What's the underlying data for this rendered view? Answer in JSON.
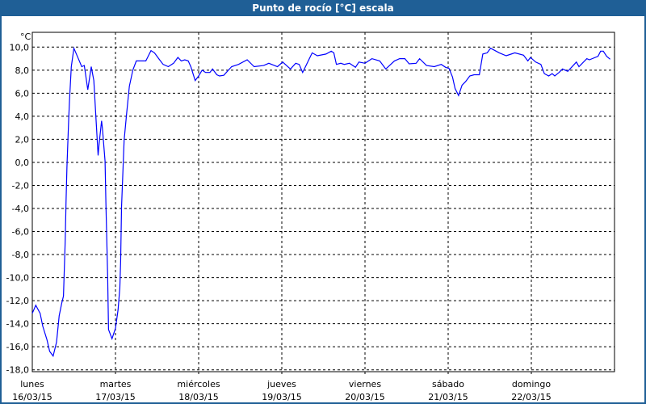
{
  "window": {
    "title": "Punto de rocío [°C] escala"
  },
  "chart_data": {
    "type": "line",
    "title": "Punto de rocío [°C] escala",
    "ylabel": "°C",
    "ylim": [
      -18,
      10
    ],
    "yticks": [
      "10,0",
      "8,0",
      "6,0",
      "4,0",
      "2,0",
      "0,0",
      "-2,0",
      "-4,0",
      "-6,0",
      "-8,0",
      "-10,0",
      "-12,0",
      "-14,0",
      "-16,0",
      "-18,0"
    ],
    "xlim": [
      "16/03/15 00:00",
      "23/03/15 00:00"
    ],
    "xticks": [
      {
        "day": "lunes",
        "date": "16/03/15"
      },
      {
        "day": "martes",
        "date": "17/03/15"
      },
      {
        "day": "miércoles",
        "date": "18/03/15"
      },
      {
        "day": "jueves",
        "date": "19/03/15"
      },
      {
        "day": "viernes",
        "date": "20/03/15"
      },
      {
        "day": "sábado",
        "date": "21/03/15"
      },
      {
        "day": "domingo",
        "date": "22/03/15"
      }
    ],
    "grid": true,
    "line_color": "#0000ff",
    "series": [
      {
        "points": [
          [
            "16/03/15 00:00",
            -13.1
          ],
          [
            "16/03/15 01:00",
            -12.4
          ],
          [
            "16/03/15 02:15",
            -13.1
          ],
          [
            "16/03/15 03:00",
            -14.2
          ],
          [
            "16/03/15 04:15",
            -15.4
          ],
          [
            "16/03/15 05:00",
            -16.4
          ],
          [
            "16/03/15 06:00",
            -16.8
          ],
          [
            "16/03/15 07:00",
            -15.6
          ],
          [
            "16/03/15 07:45",
            -13.3
          ],
          [
            "16/03/15 08:30",
            -12.2
          ],
          [
            "16/03/15 09:00",
            -11.6
          ],
          [
            "16/03/15 09:30",
            -6.7
          ],
          [
            "16/03/15 09:45",
            -3.4
          ],
          [
            "16/03/15 10:00",
            -0.4
          ],
          [
            "16/03/15 10:30",
            3.8
          ],
          [
            "16/03/15 10:45",
            5.4
          ],
          [
            "16/03/15 11:15",
            8.3
          ],
          [
            "16/03/15 12:00",
            9.9
          ],
          [
            "16/03/15 13:00",
            9.2
          ],
          [
            "16/03/15 14:15",
            8.3
          ],
          [
            "16/03/15 15:00",
            8.4
          ],
          [
            "16/03/15 16:00",
            6.3
          ],
          [
            "16/03/15 17:00",
            8.3
          ],
          [
            "16/03/15 17:45",
            7.1
          ],
          [
            "16/03/15 18:15",
            4.5
          ],
          [
            "16/03/15 19:00",
            0.6
          ],
          [
            "16/03/15 19:15",
            1.5
          ],
          [
            "16/03/15 20:00",
            3.6
          ],
          [
            "16/03/15 20:15",
            2.9
          ],
          [
            "16/03/15 21:00",
            0.1
          ],
          [
            "16/03/15 21:15",
            -3.7
          ],
          [
            "16/03/15 21:45",
            -9.8
          ],
          [
            "16/03/15 22:00",
            -14.5
          ],
          [
            "16/03/15 23:00",
            -15.3
          ],
          [
            "17/03/15 00:00",
            -14.4
          ],
          [
            "17/03/15 00:45",
            -12.8
          ],
          [
            "17/03/15 01:15",
            -10.9
          ],
          [
            "17/03/15 01:30",
            -8.6
          ],
          [
            "17/03/15 01:45",
            -3.9
          ],
          [
            "17/03/15 02:30",
            1.9
          ],
          [
            "17/03/15 03:15",
            4.3
          ],
          [
            "17/03/15 04:00",
            6.6
          ],
          [
            "17/03/15 05:00",
            8.0
          ],
          [
            "17/03/15 06:00",
            8.8
          ],
          [
            "17/03/15 08:45",
            8.8
          ],
          [
            "17/03/15 10:15",
            9.7
          ],
          [
            "17/03/15 11:15",
            9.5
          ],
          [
            "17/03/15 12:30",
            9.0
          ],
          [
            "17/03/15 13:45",
            8.5
          ],
          [
            "17/03/15 15:15",
            8.3
          ],
          [
            "17/03/15 16:45",
            8.6
          ],
          [
            "17/03/15 18:00",
            9.1
          ],
          [
            "17/03/15 19:00",
            8.8
          ],
          [
            "17/03/15 20:00",
            8.9
          ],
          [
            "17/03/15 21:00",
            8.8
          ],
          [
            "17/03/15 21:45",
            8.3
          ],
          [
            "17/03/15 23:00",
            7.1
          ],
          [
            "18/03/15 00:00",
            7.5
          ],
          [
            "18/03/15 01:00",
            8.0
          ],
          [
            "18/03/15 02:00",
            7.8
          ],
          [
            "18/03/15 03:15",
            7.8
          ],
          [
            "18/03/15 04:00",
            8.1
          ],
          [
            "18/03/15 05:15",
            7.6
          ],
          [
            "18/03/15 06:00",
            7.5
          ],
          [
            "18/03/15 07:15",
            7.55
          ],
          [
            "18/03/15 09:30",
            8.3
          ],
          [
            "18/03/15 11:30",
            8.5
          ],
          [
            "18/03/15 14:00",
            8.9
          ],
          [
            "18/03/15 16:00",
            8.3
          ],
          [
            "18/03/15 18:45",
            8.4
          ],
          [
            "18/03/15 20:15",
            8.6
          ],
          [
            "18/03/15 22:45",
            8.3
          ],
          [
            "19/03/15 00:15",
            8.7
          ],
          [
            "19/03/15 02:30",
            8.1
          ],
          [
            "19/03/15 04:00",
            8.6
          ],
          [
            "19/03/15 05:00",
            8.5
          ],
          [
            "19/03/15 06:00",
            7.8
          ],
          [
            "19/03/15 08:45",
            9.5
          ],
          [
            "19/03/15 10:15",
            9.25
          ],
          [
            "19/03/15 12:45",
            9.4
          ],
          [
            "19/03/15 14:15",
            9.65
          ],
          [
            "19/03/15 15:00",
            9.5
          ],
          [
            "19/03/15 15:45",
            8.5
          ],
          [
            "19/03/15 17:00",
            8.6
          ],
          [
            "19/03/15 18:00",
            8.5
          ],
          [
            "19/03/15 19:30",
            8.6
          ],
          [
            "19/03/15 21:15",
            8.25
          ],
          [
            "19/03/15 22:15",
            8.7
          ],
          [
            "20/03/15 00:00",
            8.6
          ],
          [
            "20/03/15 02:00",
            9.0
          ],
          [
            "20/03/15 04:15",
            8.8
          ],
          [
            "20/03/15 06:00",
            8.1
          ],
          [
            "20/03/15 08:30",
            8.8
          ],
          [
            "20/03/15 10:00",
            9.0
          ],
          [
            "20/03/15 11:30",
            9.0
          ],
          [
            "20/03/15 12:45",
            8.55
          ],
          [
            "20/03/15 14:45",
            8.6
          ],
          [
            "20/03/15 15:45",
            9.0
          ],
          [
            "20/03/15 17:45",
            8.4
          ],
          [
            "20/03/15 20:00",
            8.3
          ],
          [
            "20/03/15 22:00",
            8.5
          ],
          [
            "20/03/15 23:15",
            8.25
          ],
          [
            "21/03/15 00:15",
            8.15
          ],
          [
            "21/03/15 01:15",
            7.4
          ],
          [
            "21/03/15 02:00",
            6.4
          ],
          [
            "21/03/15 03:00",
            5.8
          ],
          [
            "21/03/15 04:00",
            6.7
          ],
          [
            "21/03/15 05:00",
            7.0
          ],
          [
            "21/03/15 06:15",
            7.5
          ],
          [
            "21/03/15 07:30",
            7.6
          ],
          [
            "21/03/15 09:00",
            7.6
          ],
          [
            "21/03/15 10:00",
            9.4
          ],
          [
            "21/03/15 11:15",
            9.5
          ],
          [
            "21/03/15 12:15",
            9.9
          ],
          [
            "21/03/15 14:45",
            9.5
          ],
          [
            "21/03/15 16:45",
            9.25
          ],
          [
            "21/03/15 19:15",
            9.5
          ],
          [
            "21/03/15 21:45",
            9.3
          ],
          [
            "21/03/15 23:00",
            8.8
          ],
          [
            "21/03/15 23:45",
            9.1
          ],
          [
            "22/03/15 01:15",
            8.7
          ],
          [
            "22/03/15 02:45",
            8.5
          ],
          [
            "22/03/15 03:45",
            7.7
          ],
          [
            "22/03/15 05:00",
            7.5
          ],
          [
            "22/03/15 06:00",
            7.7
          ],
          [
            "22/03/15 06:45",
            7.5
          ],
          [
            "22/03/15 08:00",
            7.8
          ],
          [
            "22/03/15 09:00",
            8.1
          ],
          [
            "22/03/15 10:30",
            7.9
          ],
          [
            "22/03/15 13:00",
            8.7
          ],
          [
            "22/03/15 13:45",
            8.3
          ],
          [
            "22/03/15 16:00",
            9.0
          ],
          [
            "22/03/15 16:45",
            8.9
          ],
          [
            "22/03/15 19:15",
            9.2
          ],
          [
            "22/03/15 20:00",
            9.65
          ],
          [
            "22/03/15 20:45",
            9.65
          ],
          [
            "22/03/15 21:45",
            9.2
          ],
          [
            "22/03/15 22:45",
            8.95
          ]
        ]
      }
    ]
  }
}
